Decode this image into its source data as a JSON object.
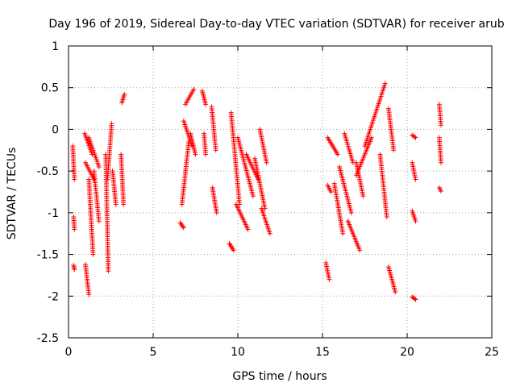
{
  "chart_data": {
    "type": "scatter",
    "title": "Day 196 of 2019, Sidereal Day-to-day VTEC variation (SDTVAR) for receiver arub",
    "xlabel": "GPS time / hours",
    "ylabel": "SDTVAR / TECUs",
    "xlim": [
      0,
      25
    ],
    "ylim": [
      -2.5,
      1
    ],
    "grid": true,
    "marker": "+",
    "series_color": "#ff0000",
    "x_ticks": [
      0,
      5,
      10,
      15,
      20,
      25
    ],
    "x_tick_labels": [
      "0",
      "5",
      "10",
      "15",
      "20",
      "25"
    ],
    "y_ticks": [
      1,
      0.5,
      0,
      -0.5,
      -1,
      -1.5,
      -2,
      -2.5
    ],
    "y_tick_labels": [
      "1",
      "0.5",
      "0",
      "-0.5",
      "-1",
      "-1.5",
      "-2",
      "-2.5"
    ],
    "tracks": [
      {
        "x0": 0.25,
        "x1": 0.35,
        "y0": -0.2,
        "y1": -0.6
      },
      {
        "x0": 0.3,
        "x1": 0.35,
        "y0": -1.05,
        "y1": -1.2
      },
      {
        "x0": 0.3,
        "x1": 0.35,
        "y0": -1.63,
        "y1": -1.68
      },
      {
        "x0": 0.95,
        "x1": 1.4,
        "y0": -0.05,
        "y1": -0.3
      },
      {
        "x0": 1.0,
        "x1": 1.5,
        "y0": -0.4,
        "y1": -0.6
      },
      {
        "x0": 1.2,
        "x1": 1.8,
        "y0": -0.1,
        "y1": -0.45
      },
      {
        "x0": 1.5,
        "x1": 1.8,
        "y0": -0.5,
        "y1": -1.1
      },
      {
        "x0": 1.2,
        "x1": 1.45,
        "y0": -0.6,
        "y1": -1.5
      },
      {
        "x0": 1.0,
        "x1": 1.2,
        "y0": -1.62,
        "y1": -1.98
      },
      {
        "x0": 2.2,
        "x1": 2.35,
        "y0": -0.3,
        "y1": -1.7
      },
      {
        "x0": 2.3,
        "x1": 2.55,
        "y0": -0.6,
        "y1": 0.07
      },
      {
        "x0": 2.6,
        "x1": 2.8,
        "y0": -0.5,
        "y1": -0.9
      },
      {
        "x0": 3.15,
        "x1": 3.3,
        "y0": 0.32,
        "y1": 0.42
      },
      {
        "x0": 3.1,
        "x1": 3.25,
        "y0": -0.3,
        "y1": -0.9
      },
      {
        "x0": 6.6,
        "x1": 6.8,
        "y0": -1.12,
        "y1": -1.18
      },
      {
        "x0": 6.7,
        "x1": 7.1,
        "y0": -0.9,
        "y1": -0.15
      },
      {
        "x0": 6.9,
        "x1": 7.4,
        "y0": 0.3,
        "y1": 0.48
      },
      {
        "x0": 6.8,
        "x1": 7.3,
        "y0": 0.1,
        "y1": -0.2
      },
      {
        "x0": 7.2,
        "x1": 7.5,
        "y0": -0.05,
        "y1": -0.3
      },
      {
        "x0": 7.9,
        "x1": 8.1,
        "y0": 0.46,
        "y1": 0.3
      },
      {
        "x0": 8.0,
        "x1": 8.1,
        "y0": -0.05,
        "y1": -0.3
      },
      {
        "x0": 8.45,
        "x1": 8.7,
        "y0": 0.27,
        "y1": -0.25
      },
      {
        "x0": 8.5,
        "x1": 8.75,
        "y0": -0.7,
        "y1": -1.0
      },
      {
        "x0": 9.5,
        "x1": 9.75,
        "y0": -1.37,
        "y1": -1.45
      },
      {
        "x0": 9.6,
        "x1": 10.1,
        "y0": 0.2,
        "y1": -0.9
      },
      {
        "x0": 9.9,
        "x1": 10.6,
        "y0": -0.9,
        "y1": -1.2
      },
      {
        "x0": 10.0,
        "x1": 10.9,
        "y0": -0.1,
        "y1": -0.8
      },
      {
        "x0": 10.5,
        "x1": 11.2,
        "y0": -0.3,
        "y1": -0.6
      },
      {
        "x0": 11.0,
        "x1": 11.6,
        "y0": -0.35,
        "y1": -0.95
      },
      {
        "x0": 11.3,
        "x1": 11.7,
        "y0": 0.0,
        "y1": -0.4
      },
      {
        "x0": 11.4,
        "x1": 11.9,
        "y0": -0.95,
        "y1": -1.25
      },
      {
        "x0": 15.2,
        "x1": 15.4,
        "y0": -1.6,
        "y1": -1.8
      },
      {
        "x0": 15.3,
        "x1": 15.5,
        "y0": -0.67,
        "y1": -0.75
      },
      {
        "x0": 15.3,
        "x1": 15.9,
        "y0": -0.1,
        "y1": -0.3
      },
      {
        "x0": 15.7,
        "x1": 16.2,
        "y0": -0.65,
        "y1": -1.25
      },
      {
        "x0": 16.0,
        "x1": 16.7,
        "y0": -0.45,
        "y1": -1.0
      },
      {
        "x0": 16.5,
        "x1": 17.2,
        "y0": -1.1,
        "y1": -1.45
      },
      {
        "x0": 16.3,
        "x1": 16.8,
        "y0": -0.05,
        "y1": -0.4
      },
      {
        "x0": 17.0,
        "x1": 17.9,
        "y0": -0.55,
        "y1": -0.1
      },
      {
        "x0": 17.0,
        "x1": 17.4,
        "y0": -0.4,
        "y1": -0.8
      },
      {
        "x0": 17.5,
        "x1": 18.7,
        "y0": -0.2,
        "y1": 0.55
      },
      {
        "x0": 18.4,
        "x1": 18.8,
        "y0": -0.3,
        "y1": -1.05
      },
      {
        "x0": 18.9,
        "x1": 19.2,
        "y0": 0.25,
        "y1": -0.25
      },
      {
        "x0": 18.9,
        "x1": 19.3,
        "y0": -1.65,
        "y1": -1.95
      },
      {
        "x0": 20.3,
        "x1": 20.5,
        "y0": -0.07,
        "y1": -0.1
      },
      {
        "x0": 20.3,
        "x1": 20.5,
        "y0": -0.4,
        "y1": -0.6
      },
      {
        "x0": 20.3,
        "x1": 20.5,
        "y0": -0.98,
        "y1": -1.1
      },
      {
        "x0": 20.3,
        "x1": 20.5,
        "y0": -2.01,
        "y1": -2.04
      },
      {
        "x0": 21.9,
        "x1": 22.0,
        "y0": 0.3,
        "y1": 0.05
      },
      {
        "x0": 21.9,
        "x1": 22.0,
        "y0": -0.1,
        "y1": -0.4
      },
      {
        "x0": 21.9,
        "x1": 22.0,
        "y0": -0.7,
        "y1": -0.74
      }
    ]
  }
}
